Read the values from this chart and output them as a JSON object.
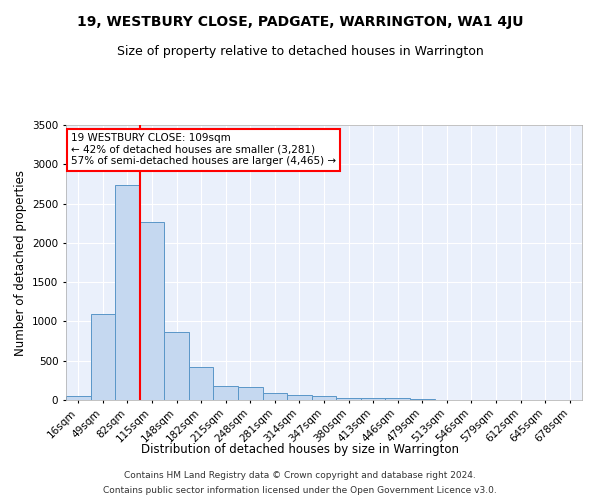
{
  "title": "19, WESTBURY CLOSE, PADGATE, WARRINGTON, WA1 4JU",
  "subtitle": "Size of property relative to detached houses in Warrington",
  "xlabel": "Distribution of detached houses by size in Warrington",
  "ylabel": "Number of detached properties",
  "bar_labels": [
    "16sqm",
    "49sqm",
    "82sqm",
    "115sqm",
    "148sqm",
    "182sqm",
    "215sqm",
    "248sqm",
    "281sqm",
    "314sqm",
    "347sqm",
    "380sqm",
    "413sqm",
    "446sqm",
    "479sqm",
    "513sqm",
    "546sqm",
    "579sqm",
    "612sqm",
    "645sqm",
    "678sqm"
  ],
  "bar_values": [
    55,
    1100,
    2740,
    2270,
    870,
    415,
    175,
    165,
    90,
    60,
    45,
    30,
    25,
    20,
    10,
    5,
    5,
    2,
    1,
    1,
    1
  ],
  "bar_color": "#c5d8f0",
  "bar_edge_color": "#5a96c8",
  "vline_color": "red",
  "annotation_line1": "19 WESTBURY CLOSE: 109sqm",
  "annotation_line2": "← 42% of detached houses are smaller (3,281)",
  "annotation_line3": "57% of semi-detached houses are larger (4,465) →",
  "annotation_box_color": "white",
  "annotation_box_edge_color": "red",
  "ylim": [
    0,
    3500
  ],
  "yticks": [
    0,
    500,
    1000,
    1500,
    2000,
    2500,
    3000,
    3500
  ],
  "plot_bg_color": "#eaf0fb",
  "title_fontsize": 10,
  "subtitle_fontsize": 9,
  "xlabel_fontsize": 8.5,
  "ylabel_fontsize": 8.5,
  "tick_fontsize": 7.5,
  "footer_fontsize": 6.5,
  "footer_line1": "Contains HM Land Registry data © Crown copyright and database right 2024.",
  "footer_line2": "Contains public sector information licensed under the Open Government Licence v3.0."
}
